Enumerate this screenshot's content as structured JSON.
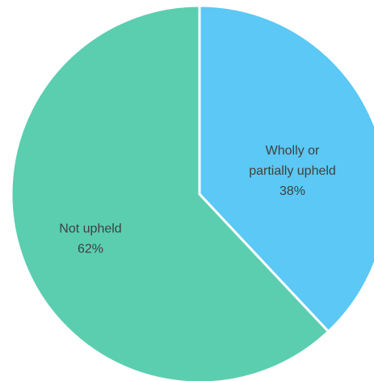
{
  "chart_data": {
    "type": "pie",
    "start_angle_deg": 0,
    "direction": "clockwise",
    "slices": [
      {
        "label_lines": [
          "Wholly or",
          "partially upheld"
        ],
        "value_label": "38%",
        "value": 38,
        "color": "#5BC8F5"
      },
      {
        "label_lines": [
          "Not upheld"
        ],
        "value_label": "62%",
        "value": 62,
        "color": "#5BCEB0"
      }
    ],
    "slice_border_color": "#ffffff"
  }
}
